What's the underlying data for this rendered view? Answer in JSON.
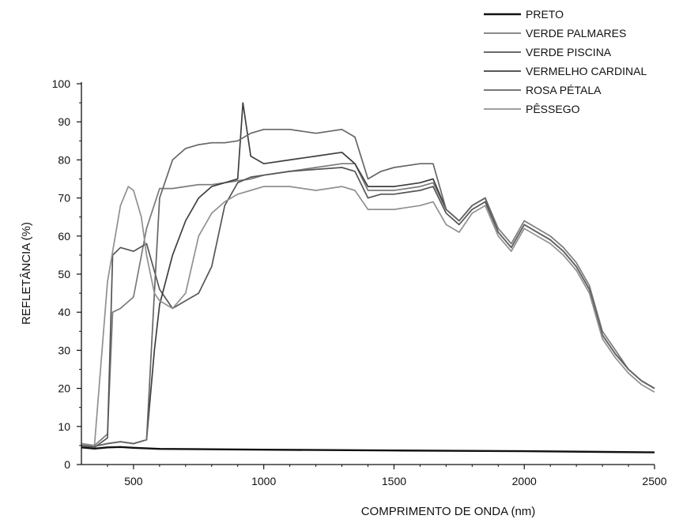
{
  "chart_data": {
    "type": "line",
    "title": "",
    "xlabel": "COMPRIMENTO DE ONDA (nm)",
    "ylabel": "REFLETÂNCIA (%)",
    "xlim": [
      300,
      2500
    ],
    "ylim": [
      0,
      100
    ],
    "xticks": [
      500,
      1000,
      1500,
      2000,
      2500
    ],
    "yticks": [
      0,
      10,
      20,
      30,
      40,
      50,
      60,
      70,
      80,
      90,
      100
    ],
    "grid": false,
    "legend_position": "top-right",
    "series": [
      {
        "name": "PRETO",
        "color": "#111111",
        "x": [
          300,
          350,
          400,
          450,
          500,
          600,
          800,
          1000,
          1500,
          2000,
          2500
        ],
        "y": [
          4.5,
          4.2,
          4.5,
          4.6,
          4.4,
          4.1,
          4.0,
          3.9,
          3.7,
          3.5,
          3.2
        ]
      },
      {
        "name": "VERDE PALMARES",
        "color": "#7a7a7a",
        "x": [
          300,
          350,
          400,
          420,
          450,
          500,
          550,
          600,
          650,
          700,
          750,
          800,
          850,
          900,
          950,
          1000,
          1100,
          1200,
          1300,
          1350,
          1400,
          1450,
          1500,
          1600,
          1650,
          1700,
          1750,
          1800,
          1850,
          1900,
          1950,
          2000,
          2050,
          2100,
          2150,
          2200,
          2250,
          2300,
          2350,
          2400,
          2450,
          2500
        ],
        "y": [
          5.5,
          5,
          8,
          40,
          41,
          44,
          62,
          72.5,
          72.5,
          73,
          73.5,
          73.5,
          74,
          74.5,
          75,
          76,
          77,
          78,
          79,
          79,
          72,
          72,
          72,
          73,
          74,
          67,
          64,
          68,
          70,
          62,
          58,
          64,
          62,
          60,
          57,
          53,
          47,
          35,
          30,
          25,
          22,
          20
        ]
      },
      {
        "name": "VERDE PISCINA",
        "color": "#555555",
        "x": [
          300,
          350,
          400,
          420,
          450,
          500,
          550,
          600,
          650,
          700,
          750,
          800,
          850,
          900,
          950,
          1000,
          1100,
          1200,
          1300,
          1350,
          1400,
          1450,
          1500,
          1600,
          1650,
          1700,
          1750,
          1800,
          1850,
          1900,
          1950,
          2000,
          2050,
          2100,
          2150,
          2200,
          2250,
          2300,
          2350,
          2400,
          2450,
          2500
        ],
        "y": [
          5,
          4.5,
          7,
          55,
          57,
          56,
          58,
          46,
          41,
          43,
          45,
          52,
          68,
          74,
          75.5,
          76,
          77,
          77.5,
          78,
          77,
          70,
          71,
          71,
          72,
          73,
          66,
          63,
          67,
          69,
          61,
          57,
          63,
          61,
          59,
          56,
          52,
          46,
          34,
          29,
          25,
          22,
          20
        ]
      },
      {
        "name": "VERMELHO CARDINAL",
        "color": "#3f3f3f",
        "x": [
          300,
          350,
          400,
          450,
          500,
          550,
          580,
          600,
          650,
          700,
          750,
          800,
          850,
          900,
          920,
          950,
          1000,
          1100,
          1200,
          1300,
          1350,
          1400,
          1450,
          1500,
          1600,
          1650,
          1700,
          1750,
          1800,
          1850,
          1900,
          1950,
          2000,
          2050,
          2100,
          2150,
          2200,
          2250,
          2300,
          2350,
          2400,
          2450,
          2500
        ],
        "y": [
          5,
          4.8,
          5.5,
          6,
          5.5,
          6.5,
          30,
          42,
          55,
          64,
          70,
          73,
          74,
          75,
          95,
          81,
          79,
          80,
          81,
          82,
          79,
          73,
          73,
          73,
          74,
          75,
          67,
          64,
          68,
          70,
          61,
          57,
          63,
          61,
          59,
          56,
          52,
          46,
          34,
          29,
          25,
          22,
          20
        ]
      },
      {
        "name": "ROSA PÉTALA",
        "color": "#666666",
        "x": [
          300,
          350,
          400,
          450,
          500,
          550,
          580,
          600,
          650,
          700,
          750,
          800,
          850,
          900,
          950,
          1000,
          1100,
          1200,
          1300,
          1350,
          1400,
          1450,
          1500,
          1600,
          1650,
          1700,
          1750,
          1800,
          1850,
          1900,
          1950,
          2000,
          2050,
          2100,
          2150,
          2200,
          2250,
          2300,
          2350,
          2400,
          2450,
          2500
        ],
        "y": [
          5,
          4.8,
          5.5,
          6,
          5.5,
          6.5,
          45,
          70,
          80,
          83,
          84,
          84.5,
          84.5,
          85,
          87,
          88,
          88,
          87,
          88,
          86,
          75,
          77,
          78,
          79,
          79,
          67,
          64,
          68,
          70,
          61,
          57,
          63,
          61,
          59,
          56,
          52,
          46,
          34,
          29,
          25,
          22,
          20
        ]
      },
      {
        "name": "PÊSSEGO",
        "color": "#909090",
        "x": [
          300,
          350,
          400,
          450,
          480,
          500,
          530,
          550,
          580,
          600,
          650,
          700,
          750,
          800,
          850,
          900,
          950,
          1000,
          1100,
          1200,
          1300,
          1350,
          1400,
          1450,
          1500,
          1600,
          1650,
          1700,
          1750,
          1800,
          1850,
          1900,
          1950,
          2000,
          2050,
          2100,
          2150,
          2200,
          2250,
          2300,
          2350,
          2400,
          2450,
          2500
        ],
        "y": [
          5.5,
          5,
          48,
          68,
          73,
          72,
          65,
          55,
          45,
          43,
          41,
          45,
          60,
          66,
          69,
          71,
          72,
          73,
          73,
          72,
          73,
          72,
          67,
          67,
          67,
          68,
          69,
          63,
          61,
          66,
          68,
          60,
          56,
          62,
          60,
          58,
          55,
          51,
          45,
          33,
          28,
          24,
          21,
          19
        ]
      }
    ]
  }
}
